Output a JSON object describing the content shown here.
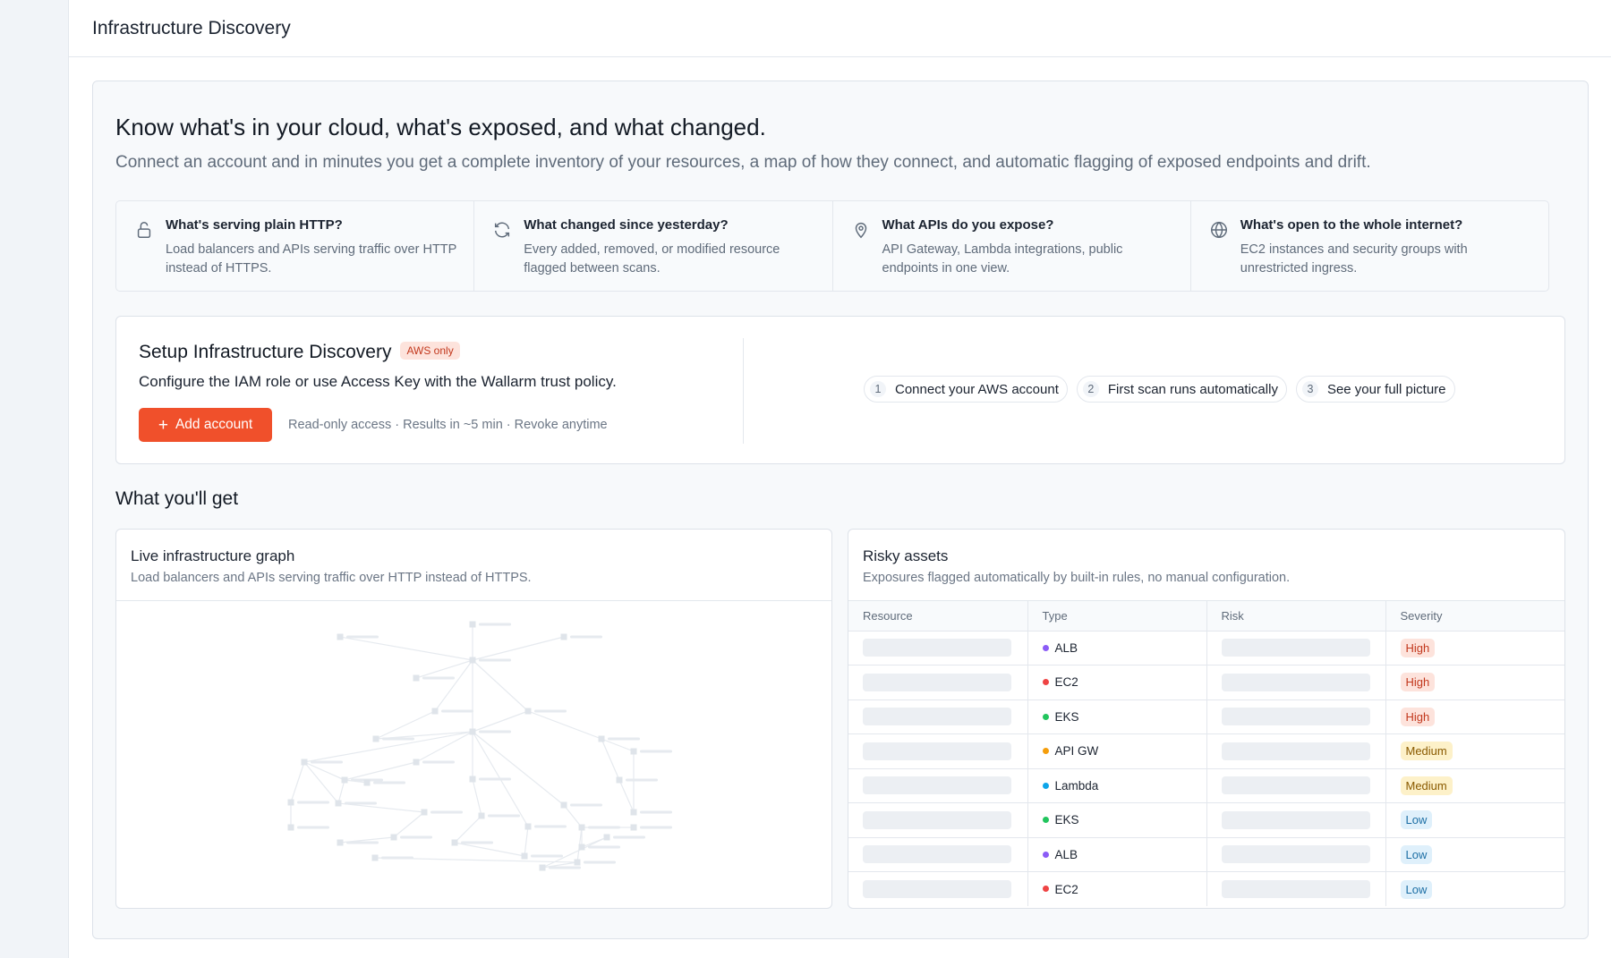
{
  "page": {
    "title": "Infrastructure Discovery"
  },
  "hero": {
    "title": "Know what's in your cloud, what's exposed, and what changed.",
    "subtitle": "Connect an account and in minutes you get a complete inventory of your resources, a map of how they connect, and automatic flagging of exposed endpoints and drift."
  },
  "questions": [
    {
      "icon": "lock-icon",
      "title": "What's serving plain HTTP?",
      "text": "Load balancers and APIs serving traffic over HTTP instead of HTTPS."
    },
    {
      "icon": "refresh-icon",
      "title": "What changed since yesterday?",
      "text": "Every added, removed, or modified resource flagged between scans."
    },
    {
      "icon": "location-pin-icon",
      "title": "What APIs do you expose?",
      "text": "API Gateway, Lambda integrations, public endpoints in one view."
    },
    {
      "icon": "globe-icon",
      "title": "What's open to the whole internet?",
      "text": "EC2 instances and security groups with unrestricted ingress."
    }
  ],
  "setup": {
    "title": "Setup Infrastructure Discovery",
    "badge": "AWS only",
    "description": "Configure the IAM role or use Access Key with the Wallarm trust policy.",
    "button_label": "Add account",
    "note": "Read-only access · Results in ~5 min · Revoke anytime",
    "steps": [
      {
        "num": "1",
        "label": "Connect your AWS account"
      },
      {
        "num": "2",
        "label": "First scan runs automatically"
      },
      {
        "num": "3",
        "label": "See your full picture"
      }
    ]
  },
  "section_title": "What you'll get",
  "graph_card": {
    "title": "Live infrastructure graph",
    "subtitle": "Load balancers and APIs serving traffic over HTTP instead of HTTPS."
  },
  "risk_card": {
    "title": "Risky assets",
    "subtitle": "Exposures flagged automatically by built-in rules, no manual configuration.",
    "columns": [
      "Resource",
      "Type",
      "Risk",
      "Severity"
    ],
    "rows": [
      {
        "type": "ALB",
        "type_color": "#8b5cf6",
        "severity": "High"
      },
      {
        "type": "EC2",
        "type_color": "#ef4444",
        "severity": "High"
      },
      {
        "type": "EKS",
        "type_color": "#22c55e",
        "severity": "High"
      },
      {
        "type": "API GW",
        "type_color": "#f59e0b",
        "severity": "Medium"
      },
      {
        "type": "Lambda",
        "type_color": "#0ea5e9",
        "severity": "Medium"
      },
      {
        "type": "EKS",
        "type_color": "#22c55e",
        "severity": "Low"
      },
      {
        "type": "ALB",
        "type_color": "#8b5cf6",
        "severity": "Low"
      },
      {
        "type": "EC2",
        "type_color": "#ef4444",
        "severity": "Low"
      }
    ]
  },
  "colors": {
    "accent": "#f0502b",
    "high": "#c2381d",
    "medium": "#8a5a00",
    "low": "#1d6fa5"
  }
}
